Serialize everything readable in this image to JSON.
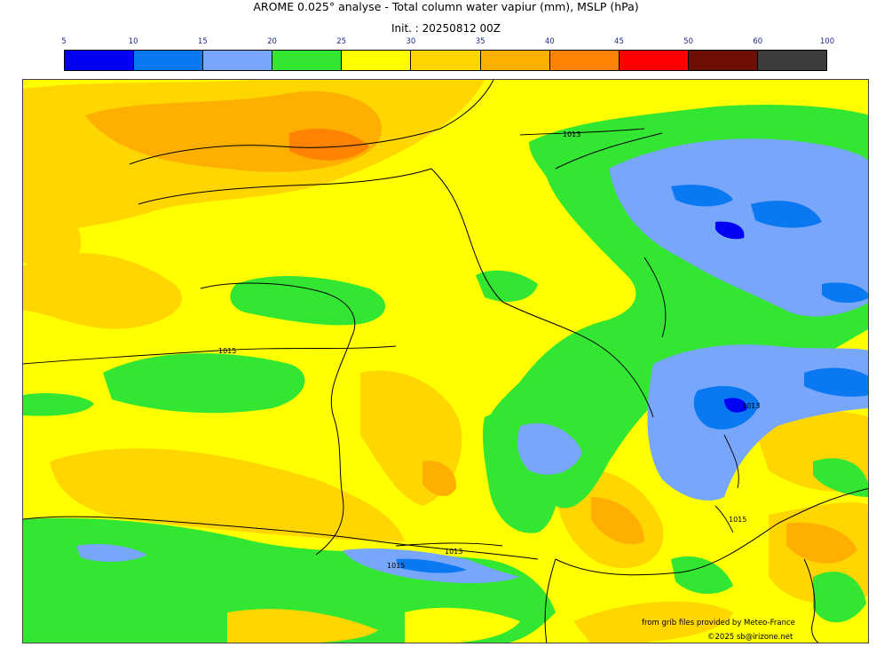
{
  "header": {
    "title": "AROME 0.025° analyse - Total column water vapiur (mm), MSLP (hPa)",
    "init": "Init. : 20250812 00Z"
  },
  "colorbar": {
    "ticks": [
      "5",
      "10",
      "15",
      "20",
      "25",
      "30",
      "35",
      "40",
      "45",
      "50",
      "60",
      "100"
    ],
    "colors": [
      "#0000f5",
      "#0a78f0",
      "#78a6fa",
      "#32e632",
      "#ffff00",
      "#ffd600",
      "#ffaf00",
      "#ff8200",
      "#ff0000",
      "#6e0f05",
      "#3c3c3c"
    ]
  },
  "map": {
    "isobar_labels": [
      "1013",
      "1015",
      "1013",
      "1015",
      "1015",
      "1013",
      "1015"
    ]
  },
  "credits": {
    "source": "from grib files provided by Meteo-France",
    "copyright": "©2025 sb@irizone.net"
  }
}
